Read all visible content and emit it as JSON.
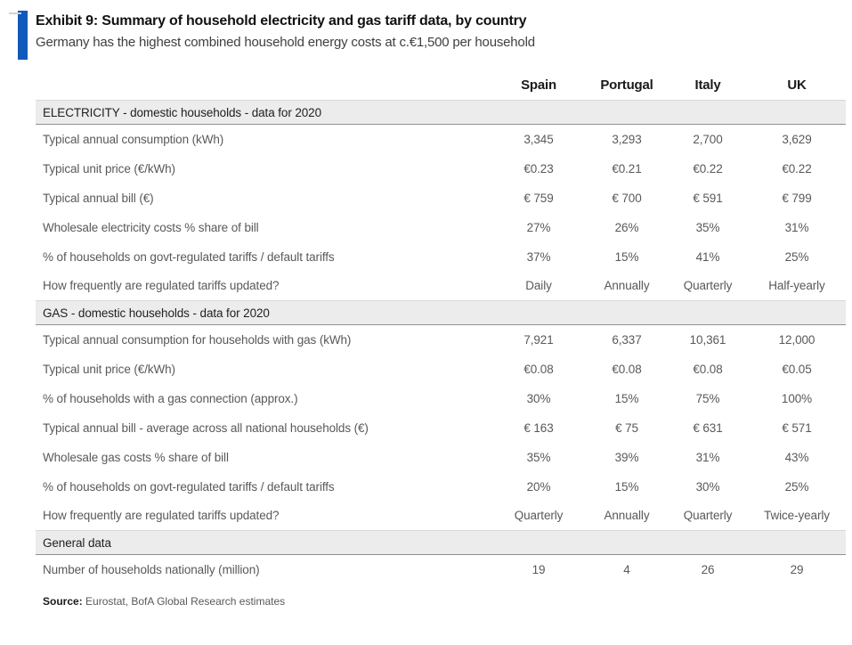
{
  "exhibit": {
    "title": "Exhibit 9: Summary of household electricity and gas tariff data, by country",
    "subtitle": "Germany has the highest combined household energy costs at c.€1,500 per household",
    "accent_color": "#1159bb",
    "source_label": "Source:",
    "source_text": " Eurostat, BofA Global Research estimates"
  },
  "table": {
    "columns": [
      "Spain",
      "Portugal",
      "Italy",
      "UK"
    ],
    "sections": [
      {
        "header": "ELECTRICITY - domestic households - data for 2020",
        "rows": [
          {
            "label": "Typical annual consumption (kWh)",
            "values": [
              "3,345",
              "3,293",
              "2,700",
              "3,629"
            ]
          },
          {
            "label": "Typical unit price (€/kWh)",
            "values": [
              "€0.23",
              "€0.21",
              "€0.22",
              "€0.22"
            ]
          },
          {
            "label": "Typical annual bill (€)",
            "values": [
              "€ 759",
              "€ 700",
              "€ 591",
              "€ 799"
            ]
          },
          {
            "label": "Wholesale electricity costs % share of bill",
            "values": [
              "27%",
              "26%",
              "35%",
              "31%"
            ]
          },
          {
            "label": "% of households on govt-regulated tariffs / default tariffs",
            "values": [
              "37%",
              "15%",
              "41%",
              "25%"
            ]
          },
          {
            "label": "How frequently are regulated tariffs updated?",
            "values": [
              "Daily",
              "Annually",
              "Quarterly",
              "Half-yearly"
            ]
          }
        ]
      },
      {
        "header": "GAS - domestic households - data for 2020",
        "rows": [
          {
            "label": "Typical annual consumption for households with gas (kWh)",
            "values": [
              "7,921",
              "6,337",
              "10,361",
              "12,000"
            ]
          },
          {
            "label": "Typical unit price (€/kWh)",
            "values": [
              "€0.08",
              "€0.08",
              "€0.08",
              "€0.05"
            ]
          },
          {
            "label": "% of households with a gas connection (approx.)",
            "values": [
              "30%",
              "15%",
              "75%",
              "100%"
            ]
          },
          {
            "label": "Typical annual bill - average across all national households (€)",
            "values": [
              "€ 163",
              "€ 75",
              "€ 631",
              "€ 571"
            ]
          },
          {
            "label": "Wholesale gas costs % share of bill",
            "values": [
              "35%",
              "39%",
              "31%",
              "43%"
            ]
          },
          {
            "label": "% of households on govt-regulated tariffs / default tariffs",
            "values": [
              "20%",
              "15%",
              "30%",
              "25%"
            ]
          },
          {
            "label": "How frequently are regulated tariffs updated?",
            "values": [
              "Quarterly",
              "Annually",
              "Quarterly",
              "Twice-yearly"
            ]
          }
        ]
      },
      {
        "header": "General data",
        "rows": [
          {
            "label": "Number of households nationally (million)",
            "values": [
              "19",
              "4",
              "26",
              "29"
            ]
          }
        ]
      }
    ]
  }
}
